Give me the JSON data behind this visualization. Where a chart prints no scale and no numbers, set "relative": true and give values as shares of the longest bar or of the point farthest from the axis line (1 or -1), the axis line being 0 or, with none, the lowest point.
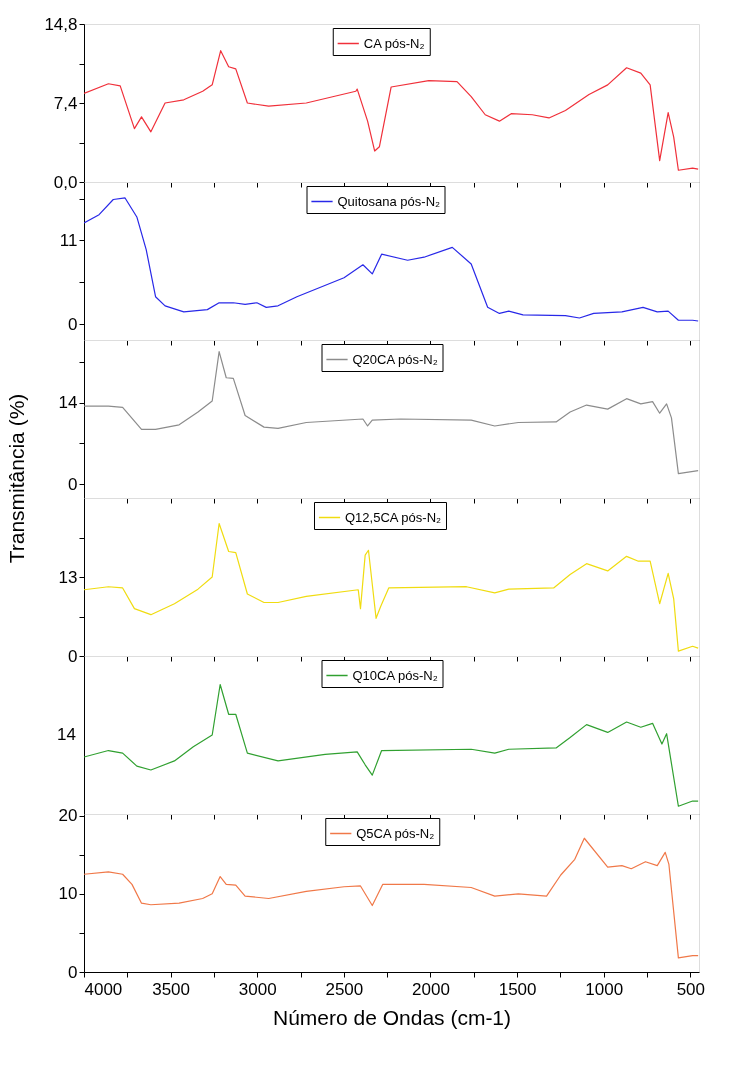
{
  "chart_data": [
    {
      "type": "line",
      "xlim": [
        4000,
        450
      ],
      "xticks": [
        4000,
        {
          "value": 3750,
          "label": null
        },
        3500,
        {
          "value": 3250,
          "label": null
        },
        3000,
        {
          "value": 2750,
          "label": null
        },
        2500,
        {
          "value": 2250,
          "label": null
        },
        2000,
        {
          "value": 1750,
          "label": null
        },
        1500,
        {
          "value": 1250,
          "label": null
        },
        1000,
        {
          "value": 750,
          "label": null
        },
        500
      ],
      "ylim": [
        0,
        14.8
      ],
      "yticks": [
        {
          "value": 0,
          "label": "0,0"
        },
        {
          "value": 3.7,
          "label": null
        },
        {
          "value": 7.4,
          "label": "7,4"
        },
        {
          "value": 11.1,
          "label": null
        },
        {
          "value": 14.8,
          "label": "14,8"
        }
      ],
      "tick_labels": "y",
      "legend": "top",
      "series": [
        {
          "name": "CA pós-N₂",
          "color": "#f0303a",
          "x": [
            4000,
            3859,
            3791,
            3709,
            3668,
            3614,
            3532,
            3424,
            3315,
            3260,
            3211,
            3165,
            3124,
            3057,
            2934,
            2717,
            2431,
            2423,
            2363,
            2322,
            2295,
            2227,
            2010,
            1847,
            1765,
            1684,
            1602,
            1534,
            1412,
            1316,
            1221,
            1085,
            977,
            868,
            786,
            732,
            677,
            628,
            596,
            569,
            487,
            455
          ],
          "values": [
            8.3,
            9.2,
            9.0,
            5.0,
            6.1,
            4.7,
            7.4,
            7.7,
            8.5,
            9.1,
            12.3,
            10.8,
            10.6,
            7.4,
            7.1,
            7.4,
            8.5,
            8.7,
            5.7,
            2.9,
            3.3,
            8.9,
            9.5,
            9.4,
            8.0,
            6.3,
            5.7,
            6.4,
            6.3,
            6.0,
            6.7,
            8.2,
            9.1,
            10.7,
            10.2,
            9.1,
            2.0,
            6.5,
            4.2,
            1.1,
            1.3,
            1.2
          ]
        }
      ]
    },
    {
      "type": "line",
      "xlim": [
        4000,
        450
      ],
      "xticks": [
        4000,
        {
          "value": 3750,
          "label": null
        },
        3500,
        {
          "value": 3250,
          "label": null
        },
        3000,
        {
          "value": 2750,
          "label": null
        },
        2500,
        {
          "value": 2250,
          "label": null
        },
        2000,
        {
          "value": 1750,
          "label": null
        },
        1500,
        {
          "value": 1250,
          "label": null
        },
        1000,
        {
          "value": 750,
          "label": null
        },
        500
      ],
      "ylim": [
        -2.1,
        18.7
      ],
      "yticks": [
        0,
        {
          "value": 5.5,
          "label": null
        },
        11,
        {
          "value": 16.5,
          "label": null
        }
      ],
      "tick_labels": "y",
      "legend": "top",
      "series": [
        {
          "name": "Quitosana pós-N₂",
          "color": "#2828e8",
          "x": [
            4000,
            3913,
            3831,
            3763,
            3695,
            3641,
            3587,
            3532,
            3424,
            3288,
            3220,
            3138,
            3070,
            3002,
            2948,
            2880,
            2771,
            2499,
            2390,
            2336,
            2282,
            2132,
            2037,
            1874,
            1765,
            1670,
            1602,
            1548,
            1466,
            1221,
            1140,
            1058,
            895,
            773,
            691,
            628,
            569,
            487,
            455
          ],
          "values": [
            13.3,
            14.4,
            16.4,
            16.6,
            14.1,
            9.8,
            3.6,
            2.4,
            1.6,
            1.9,
            2.8,
            2.8,
            2.6,
            2.8,
            2.2,
            2.4,
            3.6,
            6.1,
            7.8,
            6.6,
            9.2,
            8.4,
            8.8,
            10.1,
            7.9,
            2.2,
            1.4,
            1.7,
            1.2,
            1.1,
            0.8,
            1.4,
            1.6,
            2.2,
            1.6,
            1.7,
            0.5,
            0.5,
            0.4
          ]
        }
      ]
    },
    {
      "type": "line",
      "xlim": [
        4000,
        450
      ],
      "xticks": [
        4000,
        {
          "value": 3750,
          "label": null
        },
        3500,
        {
          "value": 3250,
          "label": null
        },
        3000,
        {
          "value": 2750,
          "label": null
        },
        2500,
        {
          "value": 2250,
          "label": null
        },
        2000,
        {
          "value": 1750,
          "label": null
        },
        1500,
        {
          "value": 1250,
          "label": null
        },
        1000,
        {
          "value": 750,
          "label": null
        },
        500
      ],
      "ylim": [
        -2.4,
        24.8
      ],
      "yticks": [
        0,
        {
          "value": 7,
          "label": null
        },
        14,
        {
          "value": 21,
          "label": null
        }
      ],
      "tick_labels": "y",
      "legend": "top",
      "series": [
        {
          "name": "Q20CA pós-N₂",
          "color": "#8c8c8c",
          "x": [
            4000,
            3859,
            3777,
            3668,
            3587,
            3451,
            3342,
            3260,
            3220,
            3179,
            3138,
            3070,
            2961,
            2880,
            2717,
            2390,
            2363,
            2336,
            2173,
            1765,
            1629,
            1493,
            1275,
            1194,
            1099,
            977,
            868,
            786,
            718,
            677,
            637,
            609,
            569,
            455
          ],
          "values": [
            13.4,
            13.4,
            13.2,
            9.4,
            9.4,
            10.2,
            12.4,
            14.3,
            22.8,
            18.3,
            18.2,
            11.8,
            9.8,
            9.6,
            10.6,
            11.2,
            10.0,
            11.0,
            11.2,
            11.0,
            10.0,
            10.6,
            10.7,
            12.4,
            13.6,
            12.9,
            14.7,
            13.8,
            14.2,
            12.2,
            13.8,
            11.4,
            1.8,
            2.3
          ]
        }
      ]
    },
    {
      "type": "line",
      "ylabel": "Transmitância (%)",
      "xlim": [
        4000,
        450
      ],
      "xticks": [
        4000,
        {
          "value": 3750,
          "label": null
        },
        3500,
        {
          "value": 3250,
          "label": null
        },
        3000,
        {
          "value": 2750,
          "label": null
        },
        2500,
        {
          "value": 2250,
          "label": null
        },
        2000,
        {
          "value": 1750,
          "label": null
        },
        1500,
        {
          "value": 1250,
          "label": null
        },
        1000,
        {
          "value": 750,
          "label": null
        },
        500
      ],
      "ylim": [
        0,
        26
      ],
      "yticks": [
        0,
        {
          "value": 6.5,
          "label": null
        },
        13,
        {
          "value": 19.5,
          "label": null
        }
      ],
      "tick_labels": "y",
      "legend": "top",
      "series": [
        {
          "name": "Q12,5CA pós-N₂",
          "color": "#f0dc10",
          "x": [
            4000,
            3859,
            3777,
            3709,
            3614,
            3478,
            3342,
            3260,
            3220,
            3165,
            3124,
            3057,
            2961,
            2880,
            2717,
            2417,
            2404,
            2377,
            2358,
            2336,
            2314,
            2287,
            2241,
            1792,
            1629,
            1548,
            1289,
            1194,
            1099,
            977,
            868,
            800,
            732,
            677,
            628,
            596,
            569,
            487,
            455
          ],
          "values": [
            10.9,
            11.4,
            11.2,
            7.8,
            6.8,
            8.6,
            11.0,
            13.0,
            21.8,
            17.2,
            17.0,
            10.2,
            8.8,
            8.8,
            9.8,
            10.9,
            7.8,
            16.6,
            17.4,
            11.8,
            6.2,
            8.2,
            11.2,
            11.4,
            10.4,
            11.0,
            11.2,
            13.4,
            15.2,
            14.0,
            16.4,
            15.6,
            15.6,
            8.6,
            13.6,
            9.4,
            0.8,
            1.6,
            1.3
          ]
        }
      ]
    },
    {
      "type": "line",
      "xlim": [
        4000,
        450
      ],
      "xticks": [
        4000,
        {
          "value": 3750,
          "label": null
        },
        3500,
        {
          "value": 3250,
          "label": null
        },
        3000,
        {
          "value": 2750,
          "label": null
        },
        2500,
        {
          "value": 2250,
          "label": null
        },
        2000,
        {
          "value": 1750,
          "label": null
        },
        1500,
        {
          "value": 1250,
          "label": null
        },
        1000,
        {
          "value": 750,
          "label": null
        },
        500
      ],
      "relative": true,
      "annotations": [
        "14"
      ],
      "tick_labels": "y",
      "legend": "top",
      "series": [
        {
          "name": "Q10CA pós-N₂",
          "color": "#30a030",
          "x": [
            4000,
            3859,
            3777,
            3695,
            3614,
            3478,
            3369,
            3260,
            3214,
            3165,
            3124,
            3057,
            2880,
            2608,
            2423,
            2377,
            2336,
            2282,
            1765,
            1629,
            1548,
            1275,
            1194,
            1099,
            977,
            868,
            786,
            718,
            664,
            637,
            569,
            487,
            455
          ],
          "values": [
            0.44,
            0.49,
            0.47,
            0.37,
            0.34,
            0.41,
            0.52,
            0.61,
            1,
            0.77,
            0.77,
            0.47,
            0.41,
            0.46,
            0.48,
            0.38,
            0.3,
            0.49,
            0.5,
            0.47,
            0.5,
            0.51,
            0.59,
            0.69,
            0.63,
            0.71,
            0.67,
            0.7,
            0.54,
            0.62,
            0.06,
            0.1,
            0.1
          ]
        }
      ]
    },
    {
      "type": "line",
      "xlabel": "Número de Ondas (cm-1)",
      "xlim": [
        4000,
        450
      ],
      "xticks": [
        4000,
        {
          "value": 3750,
          "label": null
        },
        3500,
        {
          "value": 3250,
          "label": null
        },
        3000,
        {
          "value": 2750,
          "label": null
        },
        2500,
        {
          "value": 2250,
          "label": null
        },
        2000,
        {
          "value": 1750,
          "label": null
        },
        1500,
        {
          "value": 1250,
          "label": null
        },
        1000,
        {
          "value": 750,
          "label": null
        },
        500
      ],
      "ylim": [
        0,
        20.2
      ],
      "yticks": [
        0,
        {
          "value": 5,
          "label": null
        },
        10,
        {
          "value": 15,
          "label": null
        },
        20
      ],
      "legend": "top",
      "series": [
        {
          "name": "Q5CA pós-N₂",
          "color": "#f07848",
          "x": [
            4000,
            3859,
            3777,
            3723,
            3668,
            3614,
            3451,
            3315,
            3260,
            3214,
            3179,
            3124,
            3070,
            2934,
            2717,
            2499,
            2404,
            2336,
            2276,
            2037,
            1765,
            1629,
            1493,
            1330,
            1248,
            1167,
            1112,
            977,
            895,
            841,
            759,
            691,
            645,
            624,
            569,
            487,
            455
          ],
          "values": [
            12.5,
            12.8,
            12.5,
            11.2,
            8.8,
            8.6,
            8.8,
            9.4,
            10.0,
            12.2,
            11.2,
            11.1,
            9.7,
            9.4,
            10.3,
            10.9,
            11.0,
            8.5,
            11.2,
            11.2,
            10.8,
            9.7,
            10.0,
            9.7,
            12.4,
            14.4,
            17.1,
            13.4,
            13.6,
            13.2,
            14.1,
            13.6,
            15.3,
            13.8,
            1.8,
            2.1,
            2.1
          ]
        }
      ]
    }
  ]
}
